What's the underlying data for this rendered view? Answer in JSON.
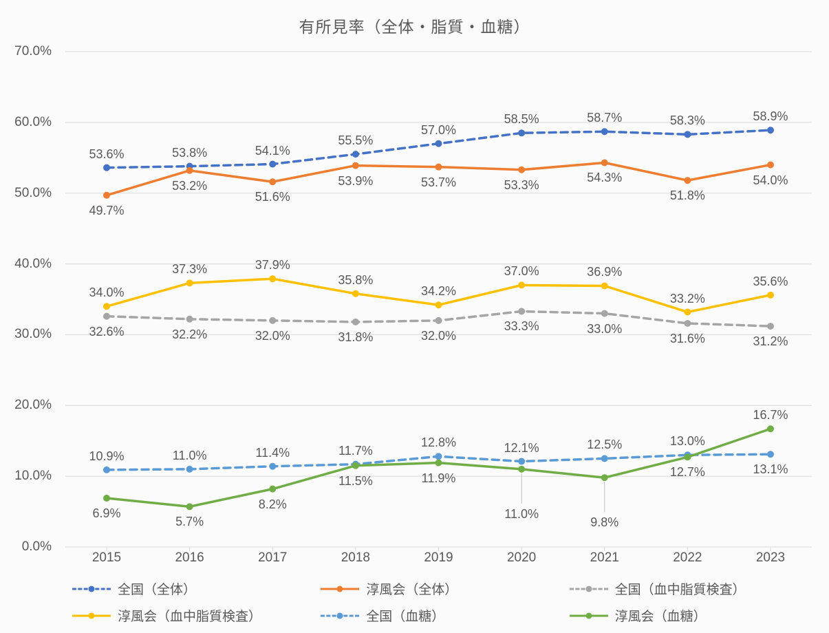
{
  "chart": {
    "type": "line",
    "title": "有所見率（全体・脂質・血糖）",
    "title_fontsize": 23,
    "title_color": "#595959",
    "background_color": "#fbfbfb",
    "plot_background_color": "#fbfbfb",
    "ylim": [
      0,
      70
    ],
    "ytick_step": 10,
    "ytick_format": "0.0%",
    "y_labels": [
      "0.0%",
      "10.0%",
      "20.0%",
      "30.0%",
      "40.0%",
      "50.0%",
      "60.0%",
      "70.0%"
    ],
    "axis_font_color": "#595959",
    "axis_font_size": 19,
    "gridline_color": "#d9d9d9",
    "categories": [
      "2015",
      "2016",
      "2017",
      "2018",
      "2019",
      "2020",
      "2021",
      "2022",
      "2023"
    ],
    "series": [
      {
        "id": "national_overall",
        "name": "全国（全体）",
        "color": "#4472c4",
        "marker_color": "#4472c4",
        "line_style": "dash",
        "line_width": 3.5,
        "marker_size": 9,
        "values": [
          53.6,
          53.8,
          54.1,
          55.5,
          57.0,
          58.5,
          58.7,
          58.3,
          58.9
        ],
        "label_position": "above"
      },
      {
        "id": "junpukai_overall",
        "name": "淳風会（全体）",
        "color": "#ed7d31",
        "marker_color": "#ed7d31",
        "line_style": "solid",
        "line_width": 3.5,
        "marker_size": 9,
        "values": [
          49.7,
          53.2,
          51.6,
          53.9,
          53.7,
          53.3,
          54.3,
          51.8,
          54.0
        ],
        "label_position": "below"
      },
      {
        "id": "national_lipid",
        "name": "全国（血中脂質検査）",
        "color": "#a5a5a5",
        "marker_color": "#a5a5a5",
        "line_style": "dash",
        "line_width": 3.5,
        "marker_size": 9,
        "values": [
          32.6,
          32.2,
          32.0,
          31.8,
          32.0,
          33.3,
          33.0,
          31.6,
          31.2
        ],
        "label_position": "below"
      },
      {
        "id": "junpukai_lipid",
        "name": "淳風会（血中脂質検査）",
        "color": "#ffc000",
        "marker_color": "#ffc000",
        "line_style": "solid",
        "line_width": 3.5,
        "marker_size": 9,
        "values": [
          34.0,
          37.3,
          37.9,
          35.8,
          34.2,
          37.0,
          36.9,
          33.2,
          35.6
        ],
        "label_position": "above"
      },
      {
        "id": "national_glucose",
        "name": "全国（血糖）",
        "color": "#5b9bd5",
        "marker_color": "#5b9bd5",
        "line_style": "dash",
        "line_width": 3.5,
        "marker_size": 9,
        "values": [
          10.9,
          11.0,
          11.4,
          11.7,
          12.8,
          12.1,
          12.5,
          13.0,
          13.1
        ],
        "label_positions": [
          "above",
          "above",
          "above",
          "above",
          "above",
          "above",
          "above",
          "above",
          "below"
        ]
      },
      {
        "id": "junpukai_glucose",
        "name": "淳風会（血糖）",
        "color": "#70ad47",
        "marker_color": "#70ad47",
        "line_style": "solid",
        "line_width": 3.5,
        "marker_size": 9,
        "values": [
          6.9,
          5.7,
          8.2,
          11.5,
          11.9,
          11.0,
          9.8,
          12.7,
          16.7
        ],
        "label_positions": [
          "below",
          "below",
          "below",
          "below",
          "below",
          "below_leader",
          "below_leader",
          "below",
          "above"
        ]
      }
    ]
  }
}
